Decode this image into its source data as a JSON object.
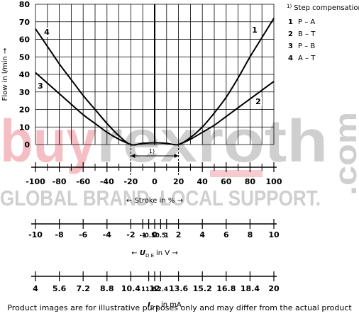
{
  "chart_data": {
    "type": "line",
    "y_label": "Flow in l/min →",
    "ylim": [
      0,
      80
    ],
    "yticks": [
      0,
      10,
      20,
      30,
      40,
      50,
      60,
      70,
      80
    ],
    "xlim": [
      -100,
      100
    ],
    "xticks": [
      -100,
      -80,
      -60,
      -40,
      -20,
      0,
      20,
      40,
      60,
      80,
      100
    ],
    "minor_xticks": [
      -90,
      -70,
      -50,
      -30,
      -10,
      10,
      30,
      50,
      70,
      90
    ],
    "x_label": "← Stroke in % →",
    "grid": true,
    "color": "#000000",
    "deadband": [
      -20,
      20
    ],
    "annotation": "1)",
    "legend_title": {
      "marker": "1)",
      "text": "Step compensation"
    },
    "series": [
      {
        "label": "1",
        "name": "P – A",
        "x": [
          0,
          10,
          20,
          30,
          40,
          50,
          60,
          70,
          80,
          90,
          100
        ],
        "values": [
          1,
          0.7,
          0,
          4,
          10,
          18,
          27,
          38,
          50,
          61,
          72
        ]
      },
      {
        "label": "2",
        "name": "B – T",
        "x": [
          20,
          30,
          40,
          50,
          60,
          70,
          80,
          90,
          100
        ],
        "values": [
          0,
          3,
          7,
          11,
          16,
          21,
          26,
          31,
          36
        ]
      },
      {
        "label": "3",
        "name": "P – B",
        "x": [
          -100,
          -90,
          -80,
          -70,
          -60,
          -50,
          -40,
          -30,
          -20
        ],
        "values": [
          41,
          35,
          29,
          23,
          17,
          12,
          7,
          3,
          0
        ]
      },
      {
        "label": "4",
        "name": "A – T",
        "x": [
          -100,
          -90,
          -80,
          -70,
          -60,
          -50,
          -40,
          -30,
          -20,
          -10,
          0
        ],
        "values": [
          66,
          56,
          46,
          37,
          28,
          20,
          12,
          5,
          0,
          0.7,
          1
        ]
      }
    ],
    "voltage_axis": {
      "xlim": [
        -10,
        10
      ],
      "xticks": [
        -10,
        -8,
        -6,
        -4,
        -2,
        -1,
        -0.5,
        0,
        0.5,
        1,
        2,
        4,
        6,
        8,
        10
      ],
      "label": {
        "left": "←",
        "symbol": "U",
        "subscript": "D E",
        "right": "in V →"
      }
    },
    "current_axis": {
      "xlim": [
        4,
        20
      ],
      "xticks": [
        4,
        5.6,
        7.2,
        8.8,
        10.4,
        11.6,
        12,
        12.4,
        13.6,
        15.2,
        16.8,
        18.4,
        20
      ],
      "label": {
        "symbol": "I",
        "subscript": "D E",
        "right": "in mA"
      }
    }
  },
  "watermark": {
    "brand_a": "buy",
    "brand_b": "rexroth",
    "domain": ".com",
    "slogan": "GLOBAL BRAND. LOCAL SUPPORT."
  },
  "disclaimer": "Product images are for illustrative purposes only and may differ from the actual product"
}
